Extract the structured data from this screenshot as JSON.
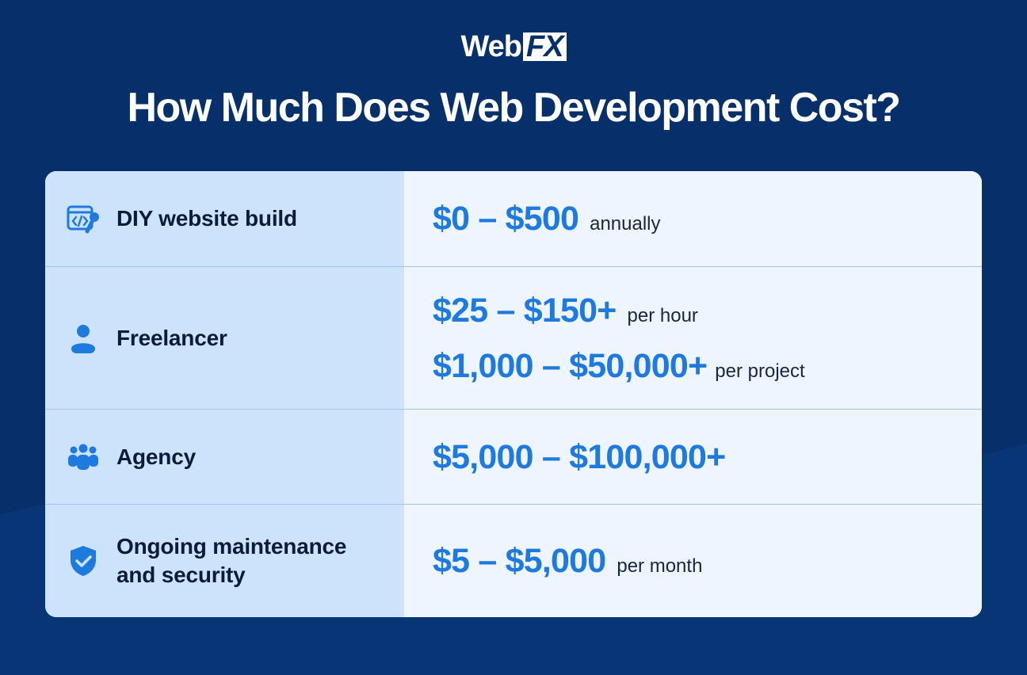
{
  "brand": {
    "logo_web": "Web",
    "logo_fx": "FX"
  },
  "title": "How Much Does Web Development Cost?",
  "colors": {
    "background": "#07306b",
    "accent": "#1f7ae0",
    "left_panel": "#cde3fb",
    "right_panel": "#eef5fe"
  },
  "rows": [
    {
      "icon": "code-wrench-icon",
      "label": "DIY website build",
      "prices": [
        {
          "amount": "$0 – $500",
          "unit": "annually"
        }
      ]
    },
    {
      "icon": "person-icon",
      "label": "Freelancer",
      "prices": [
        {
          "amount": "$25 – $150+",
          "unit": "per hour"
        },
        {
          "amount": "$1,000 – $50,000+",
          "unit": "per project"
        }
      ]
    },
    {
      "icon": "group-icon",
      "label": "Agency",
      "prices": [
        {
          "amount": "$5,000 – $100,000+",
          "unit": ""
        }
      ]
    },
    {
      "icon": "shield-check-icon",
      "label_line1": "Ongoing maintenance",
      "label_line2": "and security",
      "prices": [
        {
          "amount": "$5 – $5,000",
          "unit": "per month"
        }
      ]
    }
  ]
}
